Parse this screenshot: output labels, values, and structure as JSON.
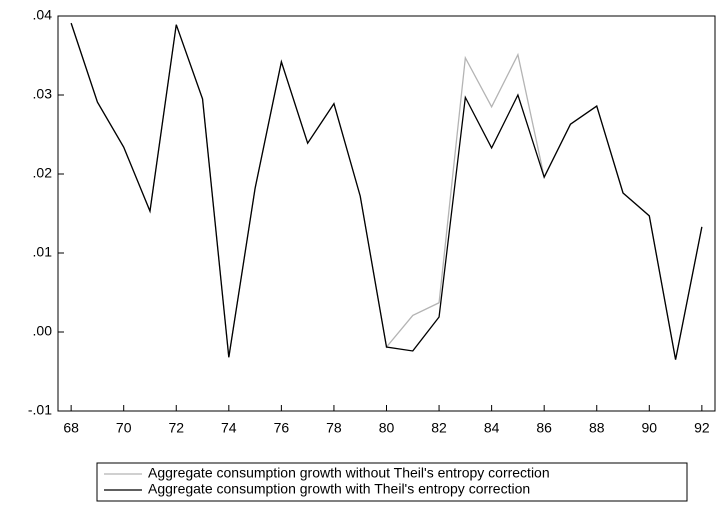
{
  "chart_data": {
    "type": "line",
    "x": [
      68,
      69,
      70,
      71,
      72,
      73,
      74,
      75,
      76,
      77,
      78,
      79,
      80,
      81,
      82,
      83,
      84,
      85,
      86,
      87,
      88,
      89,
      90,
      91,
      92
    ],
    "series": [
      {
        "name": "Aggregate consumption growth without Theil's entropy correction",
        "color": "#b4b4b4",
        "values": [
          0.0391,
          0.0291,
          0.0234,
          0.0153,
          0.0389,
          0.0295,
          -0.0032,
          0.0182,
          0.0342,
          0.0239,
          0.0289,
          0.0172,
          -0.0019,
          0.0021,
          0.0037,
          0.0347,
          0.0285,
          0.0351,
          0.0196,
          0.0263,
          0.0286,
          0.0176,
          0.0147,
          -0.0035,
          0.0133
        ]
      },
      {
        "name": "Aggregate consumption growth with Theil's entropy correction",
        "color": "#000000",
        "values": [
          0.0391,
          0.0291,
          0.0234,
          0.0153,
          0.0389,
          0.0295,
          -0.0032,
          0.0182,
          0.0342,
          0.0239,
          0.0289,
          0.0172,
          -0.0019,
          -0.0024,
          0.0019,
          0.0297,
          0.0233,
          0.03,
          0.0196,
          0.0263,
          0.0286,
          0.0176,
          0.0147,
          -0.0035,
          0.0133
        ]
      }
    ],
    "xlim": [
      67.5,
      92.5
    ],
    "xticks": [
      68,
      70,
      72,
      74,
      76,
      78,
      80,
      82,
      84,
      86,
      88,
      90,
      92
    ],
    "ylim": [
      -0.01,
      0.04
    ],
    "yticks": [
      {
        "value": -0.01,
        "label": "-.01"
      },
      {
        "value": 0,
        "label": ".00"
      },
      {
        "value": 0.01,
        "label": ".01"
      },
      {
        "value": 0.02,
        "label": ".02"
      },
      {
        "value": 0.03,
        "label": ".03"
      },
      {
        "value": 0.04,
        "label": ".04"
      }
    ],
    "grid": false
  }
}
